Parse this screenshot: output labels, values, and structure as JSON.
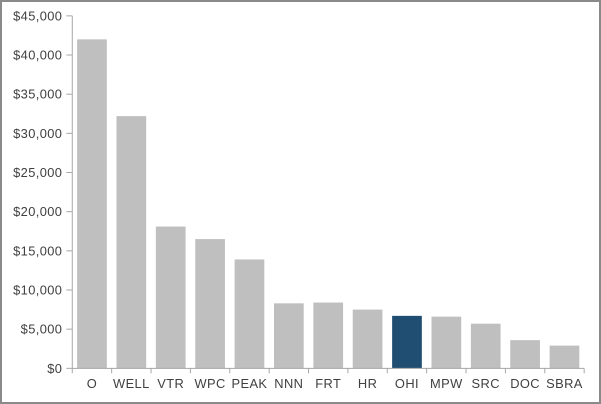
{
  "window": {
    "background": "#ffffff",
    "border_color": "#8a8a8a"
  },
  "chart_data": {
    "type": "bar",
    "title": "",
    "xlabel": "",
    "ylabel": "",
    "categories": [
      "O",
      "WELL",
      "VTR",
      "WPC",
      "PEAK",
      "NNN",
      "FRT",
      "HR",
      "OHI",
      "MPW",
      "SRC",
      "DOC",
      "SBRA"
    ],
    "values": [
      42000,
      32200,
      18100,
      16500,
      13900,
      8300,
      8400,
      7500,
      6700,
      6600,
      5700,
      3600,
      2900
    ],
    "highlight_category": "OHI",
    "highlight_index": 8,
    "ylim": [
      0,
      45000
    ],
    "ytick_step": 5000,
    "ytick_labels": [
      "$0",
      "$5,000",
      "$10,000",
      "$15,000",
      "$20,000",
      "$25,000",
      "$30,000",
      "$35,000",
      "$40,000",
      "$45,000"
    ],
    "grid": false,
    "legend": "none",
    "colors": {
      "bar_default": "#bfbfbf",
      "bar_highlight": "#204e73",
      "axis": "#a6a6a6",
      "tick_text": "#404040"
    }
  }
}
